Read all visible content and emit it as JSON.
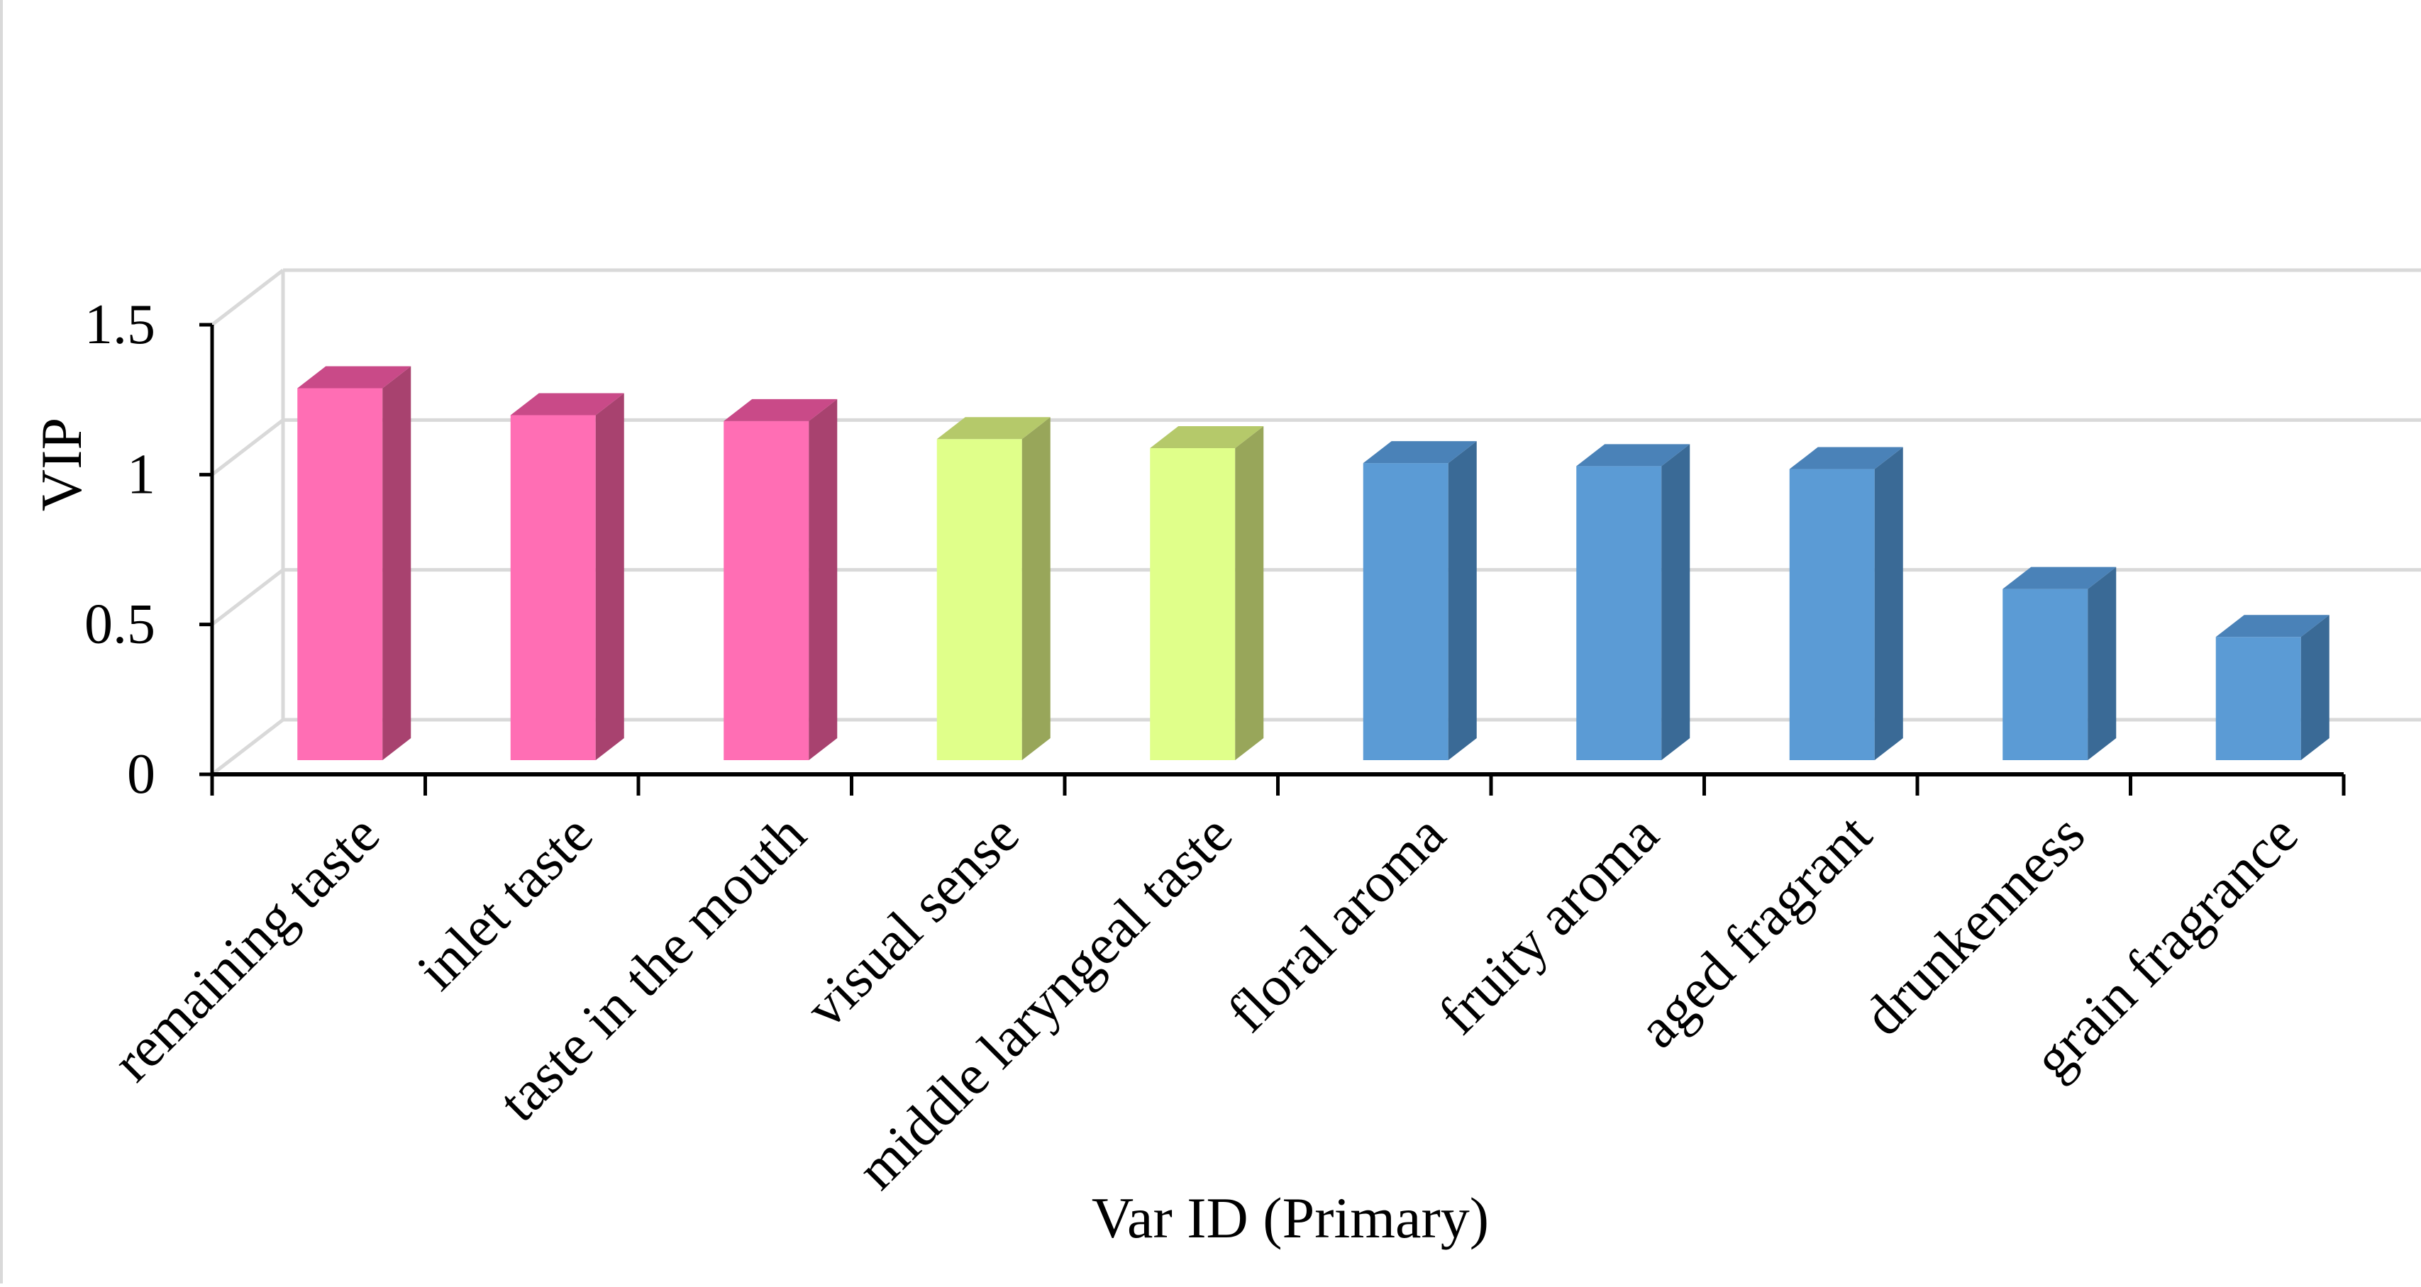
{
  "chart_data": {
    "type": "bar",
    "style": "3d",
    "title": "",
    "xlabel": "Var ID (Primary)",
    "ylabel": "VIP",
    "ylim": [
      0,
      1.5
    ],
    "yticks": [
      "0",
      "0.5",
      "1",
      "1.5"
    ],
    "grid": true,
    "legend": "none",
    "categories": [
      "remaining taste",
      "inlet taste",
      "taste in the mouth",
      "visual sense",
      "middle laryngeal taste",
      "floral aroma",
      "fruity aroma",
      "aged fragrant",
      "drunkenness",
      "grain fragrance"
    ],
    "values": [
      1.26,
      1.17,
      1.15,
      1.09,
      1.06,
      1.01,
      1.0,
      0.99,
      0.59,
      0.43
    ],
    "bar_colors": [
      "#ff6eb4",
      "#ff6eb4",
      "#ff6eb4",
      "#e0ff8a",
      "#e0ff8a",
      "#5b9bd5",
      "#5b9bd5",
      "#5b9bd5",
      "#5b9bd5",
      "#5b9bd5"
    ],
    "side_colors": [
      "#a8426f",
      "#a8426f",
      "#a8426f",
      "#98a65a",
      "#98a65a",
      "#3a6a96",
      "#3a6a96",
      "#3a6a96",
      "#3a6a96",
      "#3a6a96"
    ],
    "top_colors": [
      "#c94a88",
      "#c94a88",
      "#c94a88",
      "#b5c96a",
      "#b5c96a",
      "#4a82b8",
      "#4a82b8",
      "#4a82b8",
      "#4a82b8",
      "#4a82b8"
    ]
  }
}
